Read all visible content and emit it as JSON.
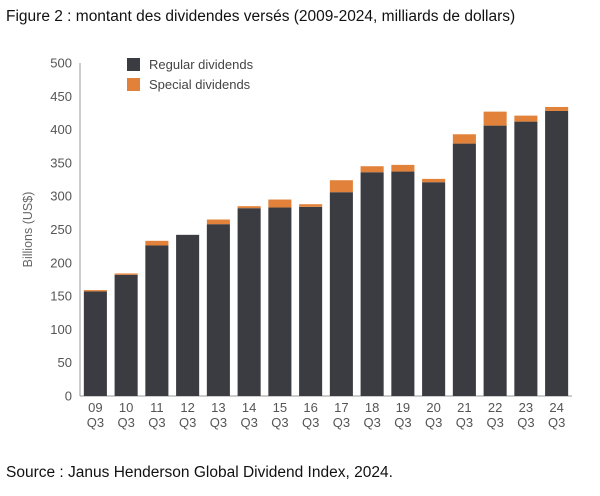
{
  "caption": "Figure 2 : montant des dividendes versés (2009-2024, milliards de dollars)",
  "source": "Source : Janus Henderson Global Dividend Index, 2024.",
  "colors": {
    "regular": "#3a3c42",
    "special": "#e2823a",
    "axis": "#999999",
    "text": "#555555"
  },
  "chart_data": {
    "type": "bar",
    "stacked": true,
    "categories": [
      [
        "09",
        "Q3"
      ],
      [
        "10",
        "Q3"
      ],
      [
        "11",
        "Q3"
      ],
      [
        "12",
        "Q3"
      ],
      [
        "13",
        "Q3"
      ],
      [
        "14",
        "Q3"
      ],
      [
        "15",
        "Q3"
      ],
      [
        "16",
        "Q3"
      ],
      [
        "17",
        "Q3"
      ],
      [
        "18",
        "Q3"
      ],
      [
        "19",
        "Q3"
      ],
      [
        "20",
        "Q3"
      ],
      [
        "21",
        "Q3"
      ],
      [
        "22",
        "Q3"
      ],
      [
        "23",
        "Q3"
      ],
      [
        "24",
        "Q3"
      ]
    ],
    "series": [
      {
        "name": "Regular dividends",
        "values": [
          157,
          182,
          226,
          242,
          258,
          282,
          283,
          284,
          306,
          336,
          337,
          321,
          379,
          406,
          412,
          428
        ]
      },
      {
        "name": "Special dividends",
        "values": [
          2,
          2,
          7,
          0,
          7,
          3,
          12,
          4,
          18,
          9,
          10,
          5,
          14,
          21,
          9,
          6
        ]
      }
    ],
    "ylabel": "Billions (US$)",
    "ylim": [
      0,
      500
    ],
    "yticks": [
      0,
      50,
      100,
      150,
      200,
      250,
      300,
      350,
      400,
      450,
      500
    ],
    "grid": false,
    "legend": "top-left"
  }
}
